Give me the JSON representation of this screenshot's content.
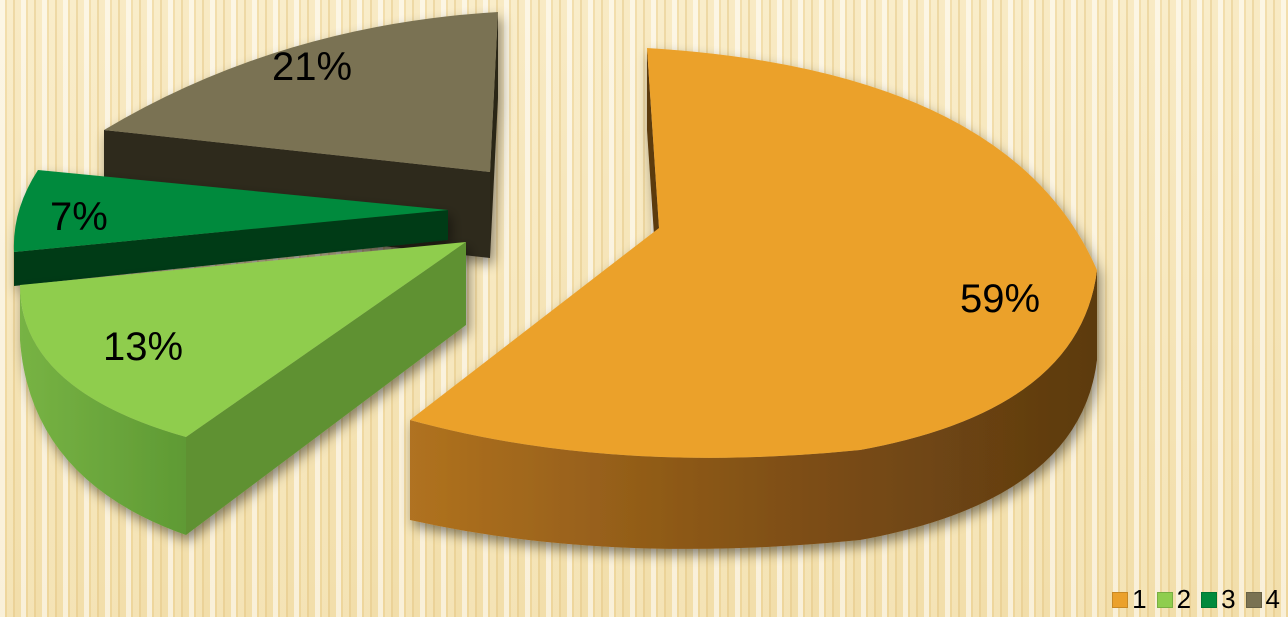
{
  "chart_data": {
    "type": "pie",
    "style": "3d-exploded",
    "categories": [
      "1",
      "2",
      "3",
      "4"
    ],
    "values": [
      59,
      13,
      7,
      21
    ],
    "labels": [
      "59%",
      "13%",
      "7%",
      "21%"
    ],
    "colors": [
      "#EBA12C",
      "#8FCD4E",
      "#008A3C",
      "#7A7252"
    ],
    "legend_position": "bottom-right",
    "title": ""
  },
  "legend": {
    "items": [
      "1",
      "2",
      "3",
      "4"
    ]
  }
}
